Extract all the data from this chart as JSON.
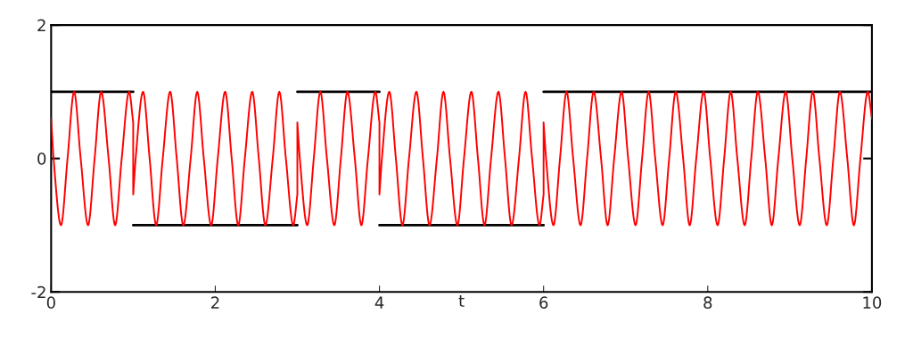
{
  "chart_data": {
    "type": "line",
    "xlabel": "t",
    "xlim": [
      0,
      10
    ],
    "ylim": [
      -2,
      2
    ],
    "xticks": [
      0,
      2,
      4,
      6,
      8,
      10
    ],
    "yticks": [
      -2,
      0,
      2
    ],
    "grid": false,
    "legend": false,
    "series": [
      {
        "color": "#ff0000",
        "x": [
          0,
          0.03,
          0.12,
          0.2,
          0.28,
          0.36,
          0.45,
          0.53,
          0.61,
          0.7,
          0.78,
          0.86,
          0.95,
          1,
          1,
          1.03,
          1.12,
          1.2,
          1.28,
          1.36,
          1.45,
          1.53,
          1.61,
          1.7,
          1.78,
          1.86,
          1.95,
          2.03,
          2.12,
          2.2,
          2.28,
          2.36,
          2.45,
          2.53,
          2.61,
          2.7,
          2.78,
          2.86,
          2.95,
          3,
          3,
          3.03,
          3.12,
          3.2,
          3.28,
          3.36,
          3.45,
          3.53,
          3.61,
          3.7,
          3.78,
          3.86,
          3.95,
          4,
          4,
          4.03,
          4.12,
          4.2,
          4.28,
          4.36,
          4.45,
          4.53,
          4.61,
          4.7,
          4.78,
          4.86,
          4.95,
          5.03,
          5.12,
          5.2,
          5.28,
          5.36,
          5.45,
          5.53,
          5.61,
          5.7,
          5.78,
          5.86,
          5.95,
          6,
          6,
          6.03,
          6.12,
          6.2,
          6.28,
          6.36,
          6.45,
          6.53,
          6.61,
          6.7,
          6.78,
          6.86,
          6.95,
          7.03,
          7.12,
          7.2,
          7.28,
          7.36,
          7.45,
          7.53,
          7.61,
          7.7,
          7.78,
          7.86,
          7.95,
          8.03,
          8.12,
          8.2,
          8.28,
          8.36,
          8.45,
          8.53,
          8.61,
          8.7,
          8.78,
          8.86,
          8.95,
          9.03,
          9.12,
          9.2,
          9.28,
          9.36,
          9.45,
          9.53,
          9.61,
          9.7,
          9.78,
          9.86,
          9.95,
          10
        ],
        "values": [
          0.6,
          0,
          -1,
          0,
          1,
          0,
          -1,
          0,
          1,
          0,
          -1,
          0,
          1,
          0.54,
          -0.54,
          0,
          1,
          0,
          -1,
          0,
          1,
          0,
          -1,
          0,
          1,
          0,
          -1,
          0,
          1,
          0,
          -1,
          0,
          1,
          0,
          -1,
          0,
          1,
          0,
          -1,
          -0.54,
          0.54,
          0,
          -1,
          0,
          1,
          0,
          -1,
          0,
          1,
          0,
          -1,
          0,
          1,
          0.54,
          -0.54,
          0,
          1,
          0,
          -1,
          0,
          1,
          0,
          -1,
          0,
          1,
          0,
          -1,
          0,
          1,
          0,
          -1,
          0,
          1,
          0,
          -1,
          0,
          1,
          0,
          -1,
          -0.54,
          0.54,
          0,
          -1,
          0,
          1,
          0,
          -1,
          0,
          1,
          0,
          -1,
          0,
          1,
          0,
          -1,
          0,
          1,
          0,
          -1,
          0,
          1,
          0,
          -1,
          0,
          1,
          0,
          -1,
          0,
          1,
          0,
          -1,
          0,
          1,
          0,
          -1,
          0,
          1,
          0,
          -1,
          0,
          1,
          0,
          -1,
          0,
          1,
          0,
          -1,
          0,
          1,
          0.6
        ]
      },
      {
        "color": "#000000",
        "x": [
          0,
          1
        ],
        "values": [
          1,
          1
        ]
      },
      {
        "color": "#000000",
        "x": [
          1,
          3
        ],
        "values": [
          -1,
          -1
        ]
      },
      {
        "color": "#000000",
        "x": [
          3,
          4
        ],
        "values": [
          1,
          1
        ]
      },
      {
        "color": "#000000",
        "x": [
          4,
          6
        ],
        "values": [
          -1,
          -1
        ]
      },
      {
        "color": "#000000",
        "x": [
          6,
          10
        ],
        "values": [
          1,
          1
        ]
      }
    ]
  }
}
